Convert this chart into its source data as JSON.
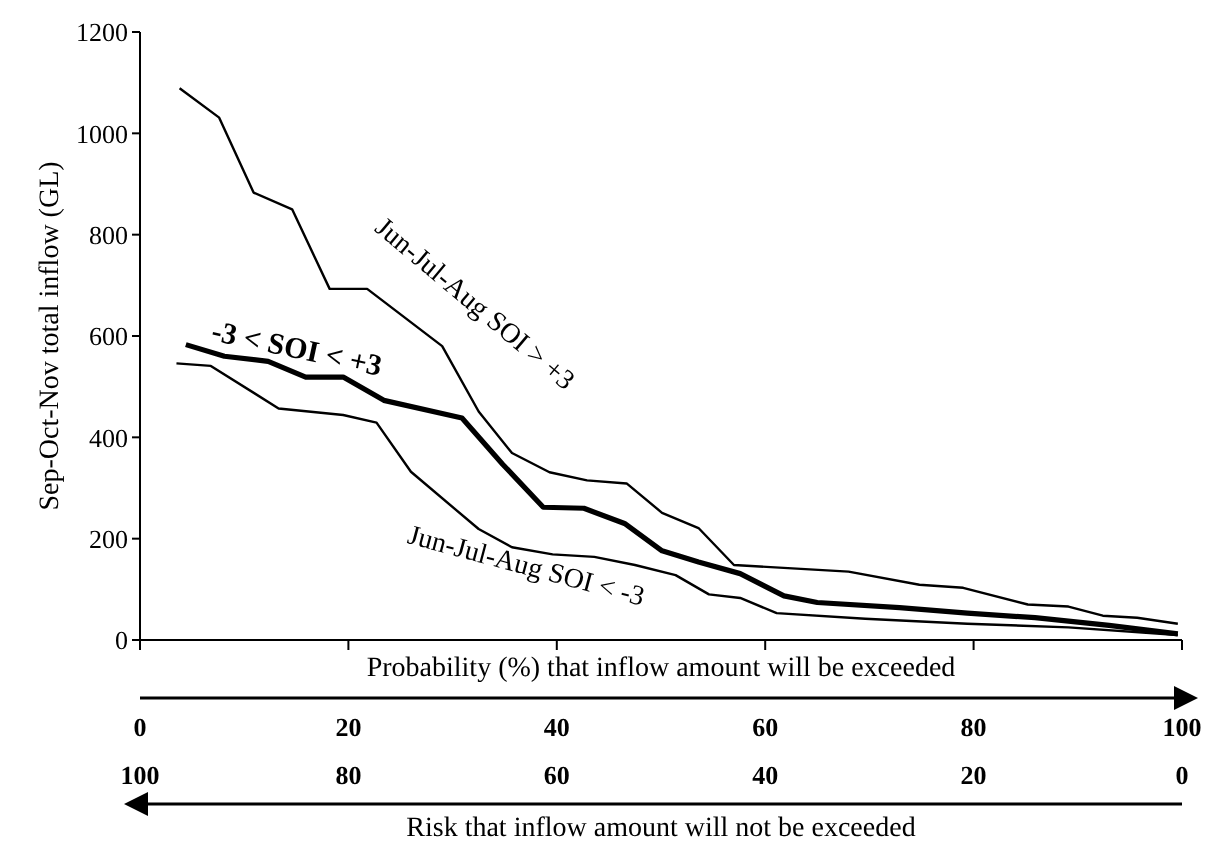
{
  "chart_data": {
    "type": "line",
    "xlabel": "Probability (%) that inflow amount will be exceeded",
    "x2label": "Risk that inflow amount will not be exceeded",
    "ylabel": "Sep-Oct-Nov total inflow (GL)",
    "xlim": [
      0,
      100
    ],
    "xticks": [
      0,
      20,
      40,
      60,
      80,
      100
    ],
    "x2lim": [
      100,
      0
    ],
    "x2ticks": [
      100,
      80,
      60,
      40,
      20,
      0
    ],
    "ylim": [
      0,
      1200
    ],
    "yticks": [
      0,
      200,
      400,
      600,
      800,
      1000,
      1200
    ],
    "grid": false,
    "legend": false,
    "marker": "none",
    "line_style": "solid",
    "series": [
      {
        "name": "Jun-Jul-Aug SOI > +3",
        "color": "#000000",
        "x": [
          3.8,
          7.6,
          10.9,
          14.6,
          18.2,
          21.8,
          29,
          32.5,
          35.7,
          39.3,
          42.9,
          46.7,
          50.1,
          53.6,
          57,
          68,
          74.8,
          79,
          85.2,
          89.1,
          92.4,
          95.7,
          99.6
        ],
        "values": [
          1089,
          1031,
          883,
          850,
          693,
          693,
          580,
          451,
          369,
          331,
          315,
          309,
          251,
          221,
          148,
          135,
          109,
          103,
          70,
          66,
          48,
          44,
          32
        ]
      },
      {
        "name": "-3 < SOI < +3",
        "color": "#000000",
        "x": [
          4.4,
          8.1,
          12.3,
          15.9,
          19.5,
          23.4,
          30.9,
          34.8,
          38.7,
          42.6,
          46.5,
          50.1,
          53.6,
          57.6,
          61.8,
          65,
          72.9,
          79.4,
          85.9,
          93,
          99.6
        ],
        "values": [
          583,
          560,
          550,
          519,
          519,
          473,
          438,
          347,
          262,
          260,
          230,
          176,
          154,
          131,
          87,
          74,
          64,
          53,
          44,
          29,
          12
        ]
      },
      {
        "name": "Jun-Jul-Aug SOI < -3",
        "color": "#000000",
        "x": [
          3.5,
          6.8,
          13.3,
          19.5,
          22.7,
          26,
          32.5,
          35.7,
          39.6,
          43.6,
          47.5,
          51.4,
          54.6,
          57.6,
          61.1,
          69.6,
          79.4,
          89.1,
          99.6
        ],
        "values": [
          546,
          541,
          457,
          444,
          429,
          332,
          219,
          183,
          169,
          164,
          148,
          128,
          90,
          83,
          53,
          42,
          32,
          25,
          10
        ]
      }
    ]
  }
}
